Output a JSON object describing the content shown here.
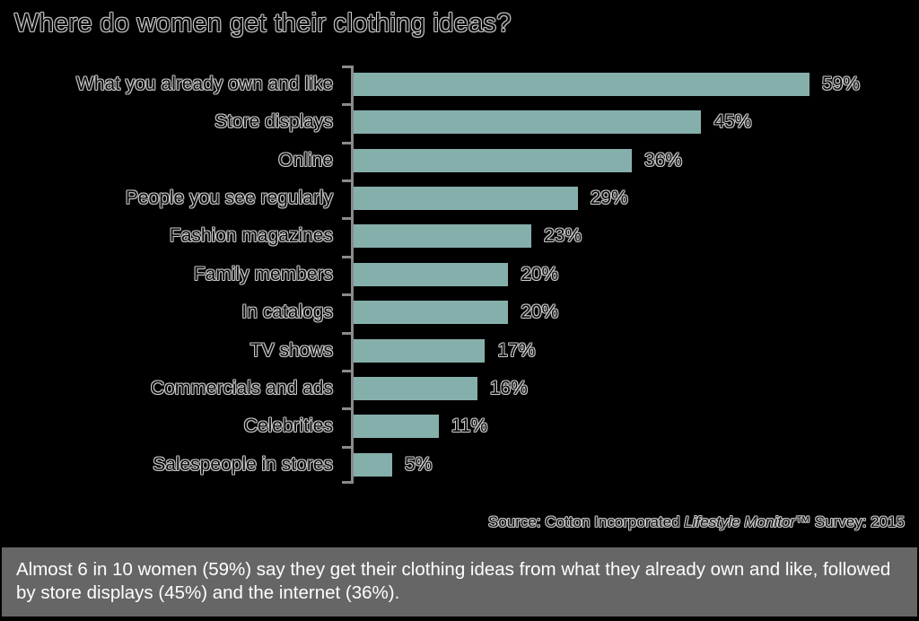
{
  "title": "Where do women get their clothing ideas?",
  "chart_data": {
    "type": "bar",
    "orientation": "horizontal",
    "title": "Where do women get their clothing ideas?",
    "xlabel": "",
    "ylabel": "",
    "unit": "%",
    "grid": false,
    "legend": null,
    "categories": [
      "What you already own and like",
      "Store displays",
      "Online",
      "People you see regularly",
      "Fashion magazines",
      "Family members",
      "In catalogs",
      "TV shows",
      "Commercials and ads",
      "Celebrities",
      "Salespeople in stores"
    ],
    "values": [
      59,
      45,
      36,
      29,
      23,
      20,
      20,
      17,
      16,
      11,
      5
    ],
    "labels": [
      "59%",
      "45%",
      "36%",
      "29%",
      "23%",
      "20%",
      "20%",
      "17%",
      "16%",
      "11%",
      "5%"
    ],
    "bar_color": "#85AFAB",
    "source": "Source: Cotton Incorporated Lifestyle Monitor™ Survey: 2015"
  },
  "source": {
    "prefix": "Source: Cotton Incorporated ",
    "italic": "Lifestyle Monitor",
    "suffix": "™ Survey: 2015"
  },
  "note": "Almost 6 in 10 women (59%) say they get their clothing ideas from what they already own and like, followed by store displays (45%) and the internet (36%).",
  "colors": {
    "background": "#000000",
    "bar": "#85AFAB",
    "axis": "#8A8A8A",
    "note_panel": "#666666",
    "note_text": "#FFFFFF"
  }
}
